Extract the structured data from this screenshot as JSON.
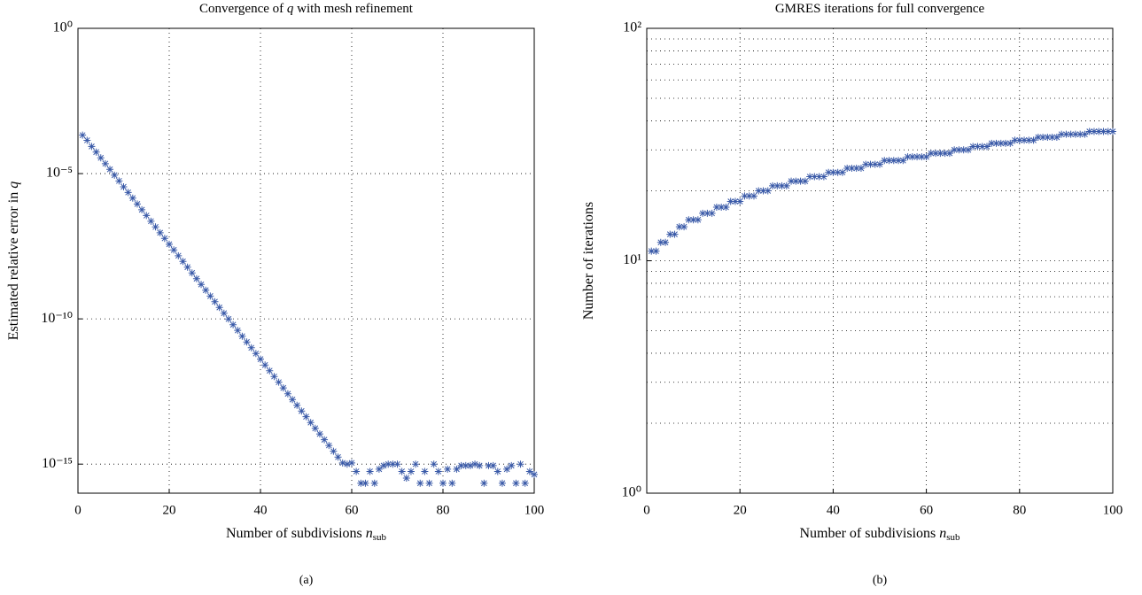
{
  "chart_data": [
    {
      "type": "scatter",
      "title": [
        "Convergence of ",
        "q",
        " with mesh refinement"
      ],
      "xlabel": [
        "Number of subdivisions ",
        "n",
        "sub"
      ],
      "ylabel": [
        "Estimated relative error in ",
        "q"
      ],
      "caption": "(a)",
      "color": "#3a5aa8",
      "log_y": true,
      "grid": true,
      "minor_grid": false,
      "xlim": [
        0,
        100
      ],
      "xticks": [
        0,
        20,
        40,
        60,
        80,
        100
      ],
      "ylim": [
        1e-16,
        1
      ],
      "yticks": [
        {
          "value": 1,
          "label": "10⁰"
        },
        {
          "value": 1e-05,
          "label": "10⁻⁵"
        },
        {
          "value": 1e-10,
          "label": "10⁻¹⁰"
        },
        {
          "value": 1e-15,
          "label": "10⁻¹⁵"
        }
      ],
      "x": [
        1,
        2,
        3,
        4,
        5,
        6,
        7,
        8,
        9,
        10,
        11,
        12,
        13,
        14,
        15,
        16,
        17,
        18,
        19,
        20,
        21,
        22,
        23,
        24,
        25,
        26,
        27,
        28,
        29,
        30,
        31,
        32,
        33,
        34,
        35,
        36,
        37,
        38,
        39,
        40,
        41,
        42,
        43,
        44,
        45,
        46,
        47,
        48,
        49,
        50,
        51,
        52,
        53,
        54,
        55,
        56,
        57,
        58,
        59,
        60,
        61,
        62,
        63,
        64,
        65,
        66,
        67,
        68,
        69,
        70,
        71,
        72,
        73,
        74,
        75,
        76,
        77,
        78,
        79,
        80,
        81,
        82,
        83,
        84,
        85,
        86,
        87,
        88,
        89,
        90,
        91,
        92,
        93,
        94,
        95,
        96,
        97,
        98,
        99,
        100
      ],
      "values": [
        0.00021,
        0.00014,
        8.6e-05,
        5.5e-05,
        3.5e-05,
        2.2e-05,
        1.4e-05,
        8.8e-06,
        5.6e-06,
        3.5e-06,
        2.25e-06,
        1.43e-06,
        9e-07,
        5.7e-07,
        3.6e-07,
        2.3e-07,
        1.46e-07,
        9.2e-08,
        5.9e-08,
        3.7e-08,
        2.36e-08,
        1.49e-08,
        9.5e-09,
        6e-09,
        3.8e-09,
        2.41e-09,
        1.53e-09,
        9.7e-10,
        6.1e-10,
        3.9e-10,
        2.47e-10,
        1.56e-10,
        9.9e-11,
        6.3e-11,
        4e-11,
        2.52e-11,
        1.6e-11,
        1.01e-11,
        6.4e-12,
        4.1e-12,
        2.58e-12,
        1.64e-12,
        1.04e-12,
        6.6e-13,
        4.2e-13,
        2.64e-13,
        1.67e-13,
        1.06e-13,
        6.7e-14,
        4.3e-14,
        2.7e-14,
        1.71e-14,
        1.09e-14,
        6.9e-15,
        4.4e-15,
        2.77e-15,
        1.75e-15,
        1.1e-15,
        1e-15,
        1.1e-15,
        5.6e-16,
        2.2e-16,
        2.2e-16,
        5.6e-16,
        2.2e-16,
        6.7e-16,
        8.9e-16,
        1e-15,
        1e-15,
        1e-15,
        5.6e-16,
        3.3e-16,
        5.6e-16,
        1e-15,
        2.2e-16,
        5.6e-16,
        2.2e-16,
        1e-15,
        5.6e-16,
        2.2e-16,
        6.7e-16,
        2.2e-16,
        6.7e-16,
        8.9e-16,
        8.9e-16,
        8.9e-16,
        1e-15,
        8.9e-16,
        2.2e-16,
        8.9e-16,
        8.9e-16,
        5.6e-16,
        2.2e-16,
        6.7e-16,
        8.9e-16,
        2.2e-16,
        1e-15,
        2.2e-16,
        5.6e-16,
        4.4e-16
      ]
    },
    {
      "type": "scatter",
      "title": [
        "GMRES iterations for full convergence"
      ],
      "xlabel": [
        "Number of subdivisions ",
        "n",
        "sub"
      ],
      "ylabel": [
        "Number of iterations"
      ],
      "caption": "(b)",
      "color": "#3a5aa8",
      "log_y": true,
      "grid": true,
      "minor_grid": true,
      "xlim": [
        0,
        100
      ],
      "xticks": [
        0,
        20,
        40,
        60,
        80,
        100
      ],
      "ylim": [
        1,
        100
      ],
      "yticks": [
        {
          "value": 1,
          "label": "10⁰"
        },
        {
          "value": 10,
          "label": "10¹"
        },
        {
          "value": 100,
          "label": "10²"
        }
      ],
      "x": [
        1,
        2,
        3,
        4,
        5,
        6,
        7,
        8,
        9,
        10,
        11,
        12,
        13,
        14,
        15,
        16,
        17,
        18,
        19,
        20,
        21,
        22,
        23,
        24,
        25,
        26,
        27,
        28,
        29,
        30,
        31,
        32,
        33,
        34,
        35,
        36,
        37,
        38,
        39,
        40,
        41,
        42,
        43,
        44,
        45,
        46,
        47,
        48,
        49,
        50,
        51,
        52,
        53,
        54,
        55,
        56,
        57,
        58,
        59,
        60,
        61,
        62,
        63,
        64,
        65,
        66,
        67,
        68,
        69,
        70,
        71,
        72,
        73,
        74,
        75,
        76,
        77,
        78,
        79,
        80,
        81,
        82,
        83,
        84,
        85,
        86,
        87,
        88,
        89,
        90,
        91,
        92,
        93,
        94,
        95,
        96,
        97,
        98,
        99,
        100
      ],
      "values": [
        11,
        11,
        12,
        12,
        13,
        13,
        14,
        14,
        15,
        15,
        15,
        16,
        16,
        16,
        17,
        17,
        17,
        18,
        18,
        18,
        19,
        19,
        19,
        20,
        20,
        20,
        21,
        21,
        21,
        21,
        22,
        22,
        22,
        22,
        23,
        23,
        23,
        23,
        24,
        24,
        24,
        24,
        25,
        25,
        25,
        25,
        26,
        26,
        26,
        26,
        27,
        27,
        27,
        27,
        27,
        28,
        28,
        28,
        28,
        28,
        29,
        29,
        29,
        29,
        29,
        30,
        30,
        30,
        30,
        31,
        31,
        31,
        31,
        32,
        32,
        32,
        32,
        32,
        33,
        33,
        33,
        33,
        33,
        34,
        34,
        34,
        34,
        34,
        35,
        35,
        35,
        35,
        35,
        35,
        36,
        36,
        36,
        36,
        36,
        36
      ]
    }
  ]
}
